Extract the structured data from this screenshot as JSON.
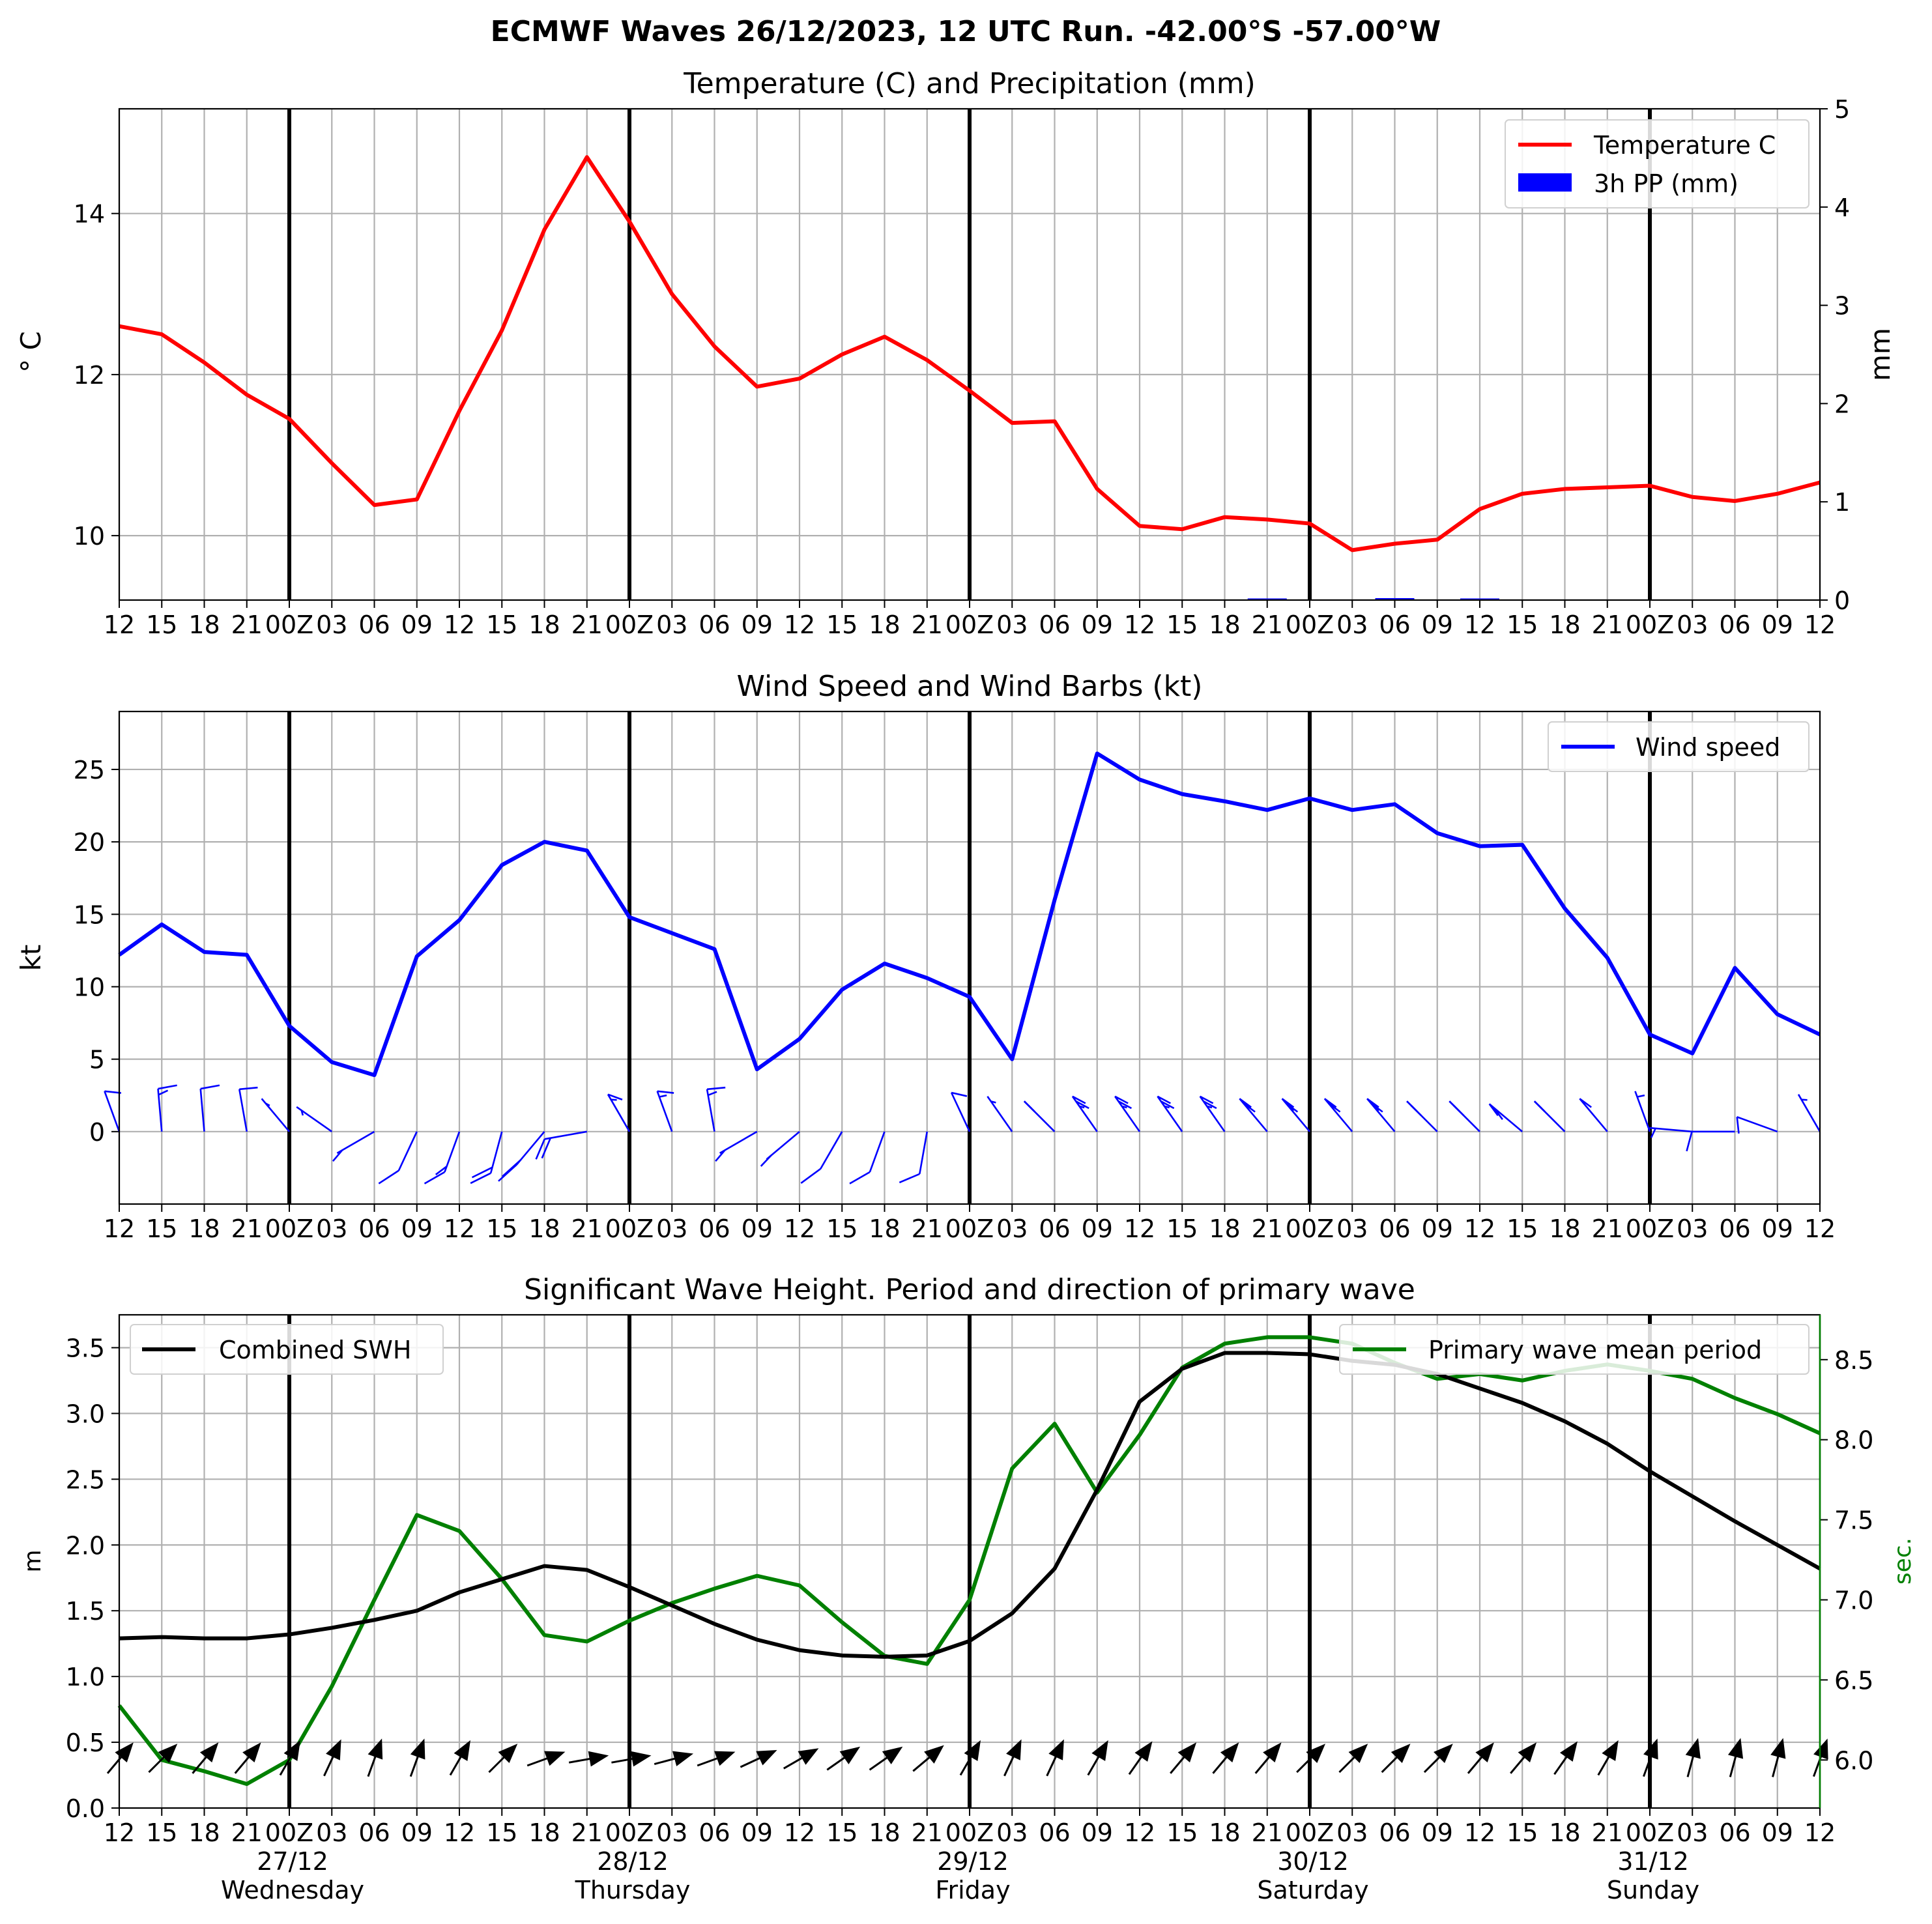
{
  "title": "ECMWF Waves 26/12/2023, 12 UTC Run. -42.00°S -57.00°W",
  "x_tick_labels": [
    "12",
    "15",
    "18",
    "21",
    "00Z",
    "03",
    "06",
    "09",
    "12",
    "15",
    "18",
    "21",
    "00Z",
    "03",
    "06",
    "09",
    "12",
    "15",
    "18",
    "21",
    "00Z",
    "03",
    "06",
    "09",
    "12",
    "15",
    "18",
    "21",
    "00Z",
    "03",
    "06",
    "09",
    "12",
    "15",
    "18",
    "21",
    "00Z",
    "03",
    "06",
    "09",
    "12"
  ],
  "day_labels": [
    {
      "date": "27/12",
      "weekday": "Wednesday"
    },
    {
      "date": "28/12",
      "weekday": "Thursday"
    },
    {
      "date": "29/12",
      "weekday": "Friday"
    },
    {
      "date": "30/12",
      "weekday": "Saturday"
    },
    {
      "date": "31/12",
      "weekday": "Sunday"
    }
  ],
  "colors": {
    "temperature": "#ff0000",
    "precipitation": "#0000ff",
    "wind": "#0000ff",
    "swh": "#000000",
    "period": "#008000",
    "arrows": "#000000"
  },
  "chart_data": [
    {
      "type": "line",
      "title": "Temperature (C) and Precipitation (mm)",
      "ylabel": "$^\\circ$C",
      "ylabel_display": "° C",
      "ylabel_right": "mm",
      "ylim": [
        9.2,
        15.3
      ],
      "yticks": [
        10,
        12,
        14
      ],
      "ylim_right": [
        0,
        5
      ],
      "yticks_right": [
        0,
        1,
        2,
        3,
        4,
        5
      ],
      "x": [
        "26/12 12",
        "26/12 15",
        "26/12 18",
        "26/12 21",
        "27/12 00",
        "27/12 03",
        "27/12 06",
        "27/12 09",
        "27/12 12",
        "27/12 15",
        "27/12 18",
        "27/12 21",
        "28/12 00",
        "28/12 03",
        "28/12 06",
        "28/12 09",
        "28/12 12",
        "28/12 15",
        "28/12 18",
        "28/12 21",
        "29/12 00",
        "29/12 03",
        "29/12 06",
        "29/12 09",
        "29/12 12",
        "29/12 15",
        "29/12 18",
        "29/12 21",
        "30/12 00",
        "30/12 03",
        "30/12 06",
        "30/12 09",
        "30/12 12",
        "30/12 15",
        "30/12 18",
        "30/12 21",
        "31/12 00",
        "31/12 03",
        "31/12 06",
        "31/12 09",
        "31/12 12"
      ],
      "series": [
        {
          "name": "Temperature C",
          "axis": "left",
          "values": [
            12.6,
            12.5,
            12.15,
            11.75,
            11.45,
            10.9,
            10.38,
            10.45,
            11.55,
            12.55,
            13.8,
            14.7,
            13.9,
            13.0,
            12.35,
            11.85,
            11.95,
            12.25,
            12.47,
            12.18,
            11.8,
            11.4,
            11.42,
            10.58,
            10.12,
            10.08,
            10.23,
            10.2,
            10.15,
            9.82,
            9.9,
            9.95,
            10.33,
            10.52,
            10.58,
            10.6,
            10.62,
            10.48,
            10.43,
            10.52,
            10.66
          ]
        },
        {
          "name": "3h PP (mm)",
          "axis": "right",
          "type": "bar",
          "values": [
            0,
            0,
            0,
            0,
            0,
            0,
            0,
            0,
            0,
            0,
            0,
            0,
            0,
            0,
            0,
            0,
            0,
            0,
            0,
            0,
            0,
            0,
            0,
            0,
            0,
            0,
            0,
            0.01,
            0,
            0,
            0.02,
            0,
            0.01,
            0,
            0,
            0,
            0,
            0,
            0,
            0,
            0
          ]
        }
      ],
      "legend": "top-right",
      "grid": true
    },
    {
      "type": "line",
      "title": "Wind Speed and Wind Barbs (kt)",
      "ylabel": "kt",
      "ylim": [
        -5,
        29
      ],
      "yticks": [
        0,
        5,
        10,
        15,
        20,
        25
      ],
      "x": [
        "26/12 12",
        "26/12 15",
        "26/12 18",
        "26/12 21",
        "27/12 00",
        "27/12 03",
        "27/12 06",
        "27/12 09",
        "27/12 12",
        "27/12 15",
        "27/12 18",
        "27/12 21",
        "28/12 00",
        "28/12 03",
        "28/12 06",
        "28/12 09",
        "28/12 12",
        "28/12 15",
        "28/12 18",
        "28/12 21",
        "29/12 00",
        "29/12 03",
        "29/12 06",
        "29/12 09",
        "29/12 12",
        "29/12 15",
        "29/12 18",
        "29/12 21",
        "30/12 00",
        "30/12 03",
        "30/12 06",
        "30/12 09",
        "30/12 12",
        "30/12 15",
        "30/12 18",
        "30/12 21",
        "31/12 00",
        "31/12 03",
        "31/12 06",
        "31/12 09",
        "31/12 12"
      ],
      "series": [
        {
          "name": "Wind speed",
          "values": [
            12.2,
            14.3,
            12.4,
            12.2,
            7.3,
            4.8,
            3.9,
            12.1,
            14.6,
            18.4,
            20.0,
            19.4,
            14.8,
            13.7,
            12.6,
            4.3,
            6.4,
            9.8,
            11.6,
            10.6,
            9.3,
            5.0,
            16.0,
            26.1,
            24.3,
            23.3,
            22.8,
            22.2,
            23.0,
            22.2,
            22.6,
            20.6,
            19.7,
            19.8,
            15.4,
            12.0,
            6.7,
            5.4,
            11.3,
            8.1,
            6.7
          ]
        }
      ],
      "wind_barbs": {
        "speed_kt": [
          12.2,
          14.3,
          12.4,
          12.2,
          7.3,
          4.8,
          3.9,
          12.1,
          14.6,
          18.4,
          20.0,
          19.4,
          14.8,
          13.7,
          12.6,
          4.3,
          6.4,
          9.8,
          11.6,
          10.6,
          9.3,
          5.0,
          16.0,
          26.1,
          24.3,
          23.3,
          22.8,
          22.2,
          23.0,
          22.2,
          22.6,
          20.6,
          19.7,
          19.8,
          15.4,
          12.0,
          6.7,
          5.4,
          11.3,
          8.1,
          6.7
        ],
        "direction_from_deg": [
          200,
          185,
          185,
          190,
          220,
          235,
          300,
          335,
          340,
          345,
          320,
          280,
          210,
          200,
          190,
          300,
          310,
          330,
          340,
          350,
          205,
          215,
          225,
          215,
          215,
          215,
          215,
          220,
          220,
          220,
          220,
          225,
          225,
          230,
          225,
          220,
          200,
          265,
          270,
          250,
          210
        ]
      },
      "legend": "top-right",
      "grid": true
    },
    {
      "type": "line",
      "title": "Significant Wave Height. Period and direction of primary wave",
      "ylabel": "m",
      "ylabel_right": "sec.",
      "ylim": [
        0,
        3.75
      ],
      "yticks": [
        0.0,
        0.5,
        1.0,
        1.5,
        2.0,
        2.5,
        3.0,
        3.5
      ],
      "ylim_right": [
        5.7,
        8.78
      ],
      "yticks_right": [
        6.0,
        6.5,
        7.0,
        7.5,
        8.0,
        8.5
      ],
      "x": [
        "26/12 12",
        "26/12 15",
        "26/12 18",
        "26/12 21",
        "27/12 00",
        "27/12 03",
        "27/12 06",
        "27/12 09",
        "27/12 12",
        "27/12 15",
        "27/12 18",
        "27/12 21",
        "28/12 00",
        "28/12 03",
        "28/12 06",
        "28/12 09",
        "28/12 12",
        "28/12 15",
        "28/12 18",
        "28/12 21",
        "29/12 00",
        "29/12 03",
        "29/12 06",
        "29/12 09",
        "29/12 12",
        "29/12 15",
        "29/12 18",
        "29/12 21",
        "30/12 00",
        "30/12 03",
        "30/12 06",
        "30/12 09",
        "30/12 12",
        "30/12 15",
        "30/12 18",
        "30/12 21",
        "31/12 00",
        "31/12 03",
        "31/12 06",
        "31/12 09",
        "31/12 12"
      ],
      "series": [
        {
          "name": "Combined SWH",
          "axis": "left",
          "values": [
            1.29,
            1.3,
            1.29,
            1.29,
            1.32,
            1.37,
            1.43,
            1.5,
            1.64,
            1.74,
            1.84,
            1.81,
            1.68,
            1.54,
            1.4,
            1.28,
            1.2,
            1.16,
            1.15,
            1.16,
            1.27,
            1.48,
            1.82,
            2.42,
            3.09,
            3.34,
            3.46,
            3.46,
            3.45,
            3.4,
            3.37,
            3.3,
            3.19,
            3.08,
            2.94,
            2.77,
            2.56,
            2.37,
            2.18,
            2.0,
            1.82
          ]
        },
        {
          "name": "Primary wave mean period",
          "axis": "right",
          "values": [
            6.34,
            6.0,
            5.93,
            5.85,
            6.0,
            6.46,
            7.0,
            7.53,
            7.43,
            7.13,
            6.78,
            6.74,
            6.87,
            6.98,
            7.07,
            7.15,
            7.09,
            6.86,
            6.65,
            6.6,
            7.0,
            7.82,
            8.1,
            7.67,
            8.03,
            8.45,
            8.6,
            8.64,
            8.64,
            8.6,
            8.48,
            8.38,
            8.41,
            8.37,
            8.43,
            8.47,
            8.43,
            8.38,
            8.26,
            8.16,
            8.04
          ]
        }
      ],
      "wave_direction_deg": [
        40,
        45,
        40,
        40,
        30,
        25,
        20,
        20,
        30,
        45,
        70,
        80,
        80,
        75,
        70,
        65,
        60,
        55,
        55,
        50,
        30,
        25,
        25,
        30,
        35,
        40,
        40,
        40,
        45,
        45,
        45,
        45,
        40,
        40,
        35,
        30,
        20,
        15,
        15,
        15,
        20
      ],
      "legend": [
        "top-left",
        "top-right"
      ],
      "grid": true
    }
  ]
}
